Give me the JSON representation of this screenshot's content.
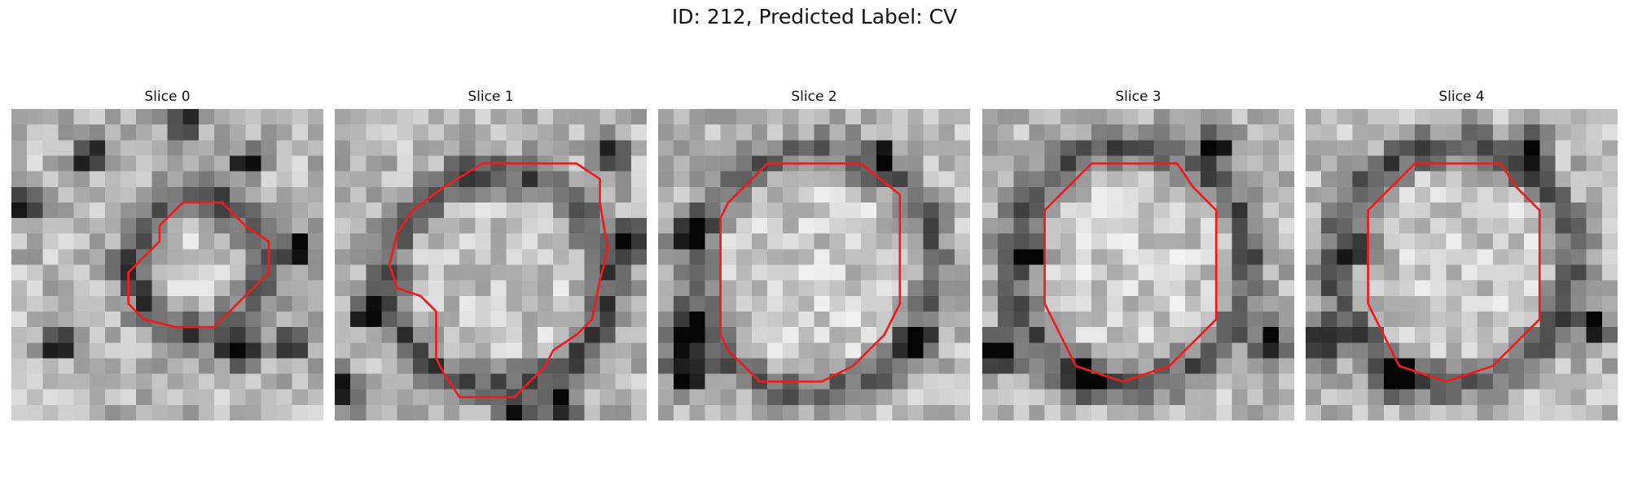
{
  "figure": {
    "title": "ID: 212, Predicted Label: CV"
  },
  "slices": [
    {
      "label": "Slice 0",
      "seed": 11,
      "contour": [
        [
          15.0,
          7.5
        ],
        [
          13.5,
          6.0
        ],
        [
          11.0,
          6.0
        ],
        [
          9.5,
          7.5
        ],
        [
          9.5,
          8.5
        ],
        [
          8.5,
          9.5
        ],
        [
          7.5,
          10.5
        ],
        [
          7.5,
          12.5
        ],
        [
          8.5,
          13.5
        ],
        [
          10.5,
          14.0
        ],
        [
          13.0,
          14.0
        ],
        [
          14.0,
          13.0
        ],
        [
          15.5,
          11.5
        ],
        [
          16.5,
          10.5
        ],
        [
          16.5,
          8.5
        ]
      ],
      "dark_blobs": [
        [
          0.8,
          6.0,
          0.9
        ],
        [
          18.5,
          9.0,
          1.0
        ],
        [
          14.5,
          15.5,
          1.2
        ],
        [
          11.0,
          1.0,
          1.1
        ],
        [
          15.0,
          3.5,
          0.9
        ],
        [
          18.0,
          15.0,
          1.0
        ],
        [
          5.0,
          3.0,
          1.0
        ],
        [
          3.0,
          15.0,
          1.0
        ]
      ],
      "ring": [
        12.0,
        10.0,
        4.3,
        0.42
      ],
      "bright": [
        12.0,
        10.0,
        2.7,
        0.05
      ]
    },
    {
      "label": "Slice 1",
      "seed": 23,
      "contour": [
        [
          17.0,
          4.5
        ],
        [
          15.5,
          3.5
        ],
        [
          9.5,
          3.5
        ],
        [
          7.0,
          5.0
        ],
        [
          5.0,
          6.5
        ],
        [
          4.0,
          8.0
        ],
        [
          3.5,
          10.0
        ],
        [
          4.0,
          11.5
        ],
        [
          5.5,
          12.0
        ],
        [
          6.5,
          13.0
        ],
        [
          6.5,
          16.0
        ],
        [
          7.0,
          17.0
        ],
        [
          8.0,
          18.5
        ],
        [
          11.5,
          18.5
        ],
        [
          12.5,
          17.5
        ],
        [
          13.5,
          16.5
        ],
        [
          14.0,
          15.5
        ],
        [
          15.5,
          14.5
        ],
        [
          16.5,
          13.5
        ],
        [
          17.0,
          11.0
        ],
        [
          17.5,
          9.0
        ],
        [
          17.0,
          6.0
        ]
      ],
      "dark_blobs": [
        [
          17.5,
          3.0,
          1.0
        ],
        [
          14.5,
          19.0,
          1.0
        ],
        [
          19.0,
          8.5,
          1.0
        ],
        [
          2.0,
          13.0,
          1.0
        ],
        [
          0.5,
          18.0,
          1.2
        ],
        [
          12.0,
          20.0,
          1.0
        ]
      ],
      "ring": [
        10.5,
        11.0,
        7.0,
        0.4
      ],
      "bright": [
        10.5,
        11.0,
        5.5,
        0.05
      ]
    },
    {
      "label": "Slice 2",
      "seed": 37,
      "contour": [
        [
          15.5,
          5.5
        ],
        [
          13.0,
          3.5
        ],
        [
          7.0,
          3.5
        ],
        [
          5.5,
          5.0
        ],
        [
          4.5,
          6.0
        ],
        [
          4.0,
          7.0
        ],
        [
          4.0,
          14.5
        ],
        [
          4.5,
          15.5
        ],
        [
          5.5,
          16.5
        ],
        [
          6.5,
          17.5
        ],
        [
          10.5,
          17.5
        ],
        [
          11.5,
          17.0
        ],
        [
          12.5,
          16.5
        ],
        [
          14.5,
          14.5
        ],
        [
          15.0,
          13.5
        ],
        [
          15.5,
          12.5
        ]
      ],
      "dark_blobs": [
        [
          1.5,
          14.5,
          1.3
        ],
        [
          1.8,
          17.0,
          1.2
        ],
        [
          2.0,
          8.0,
          1.0
        ],
        [
          14.5,
          3.0,
          0.8
        ],
        [
          16.5,
          15.0,
          0.9
        ]
      ],
      "ring": [
        10.0,
        10.5,
        7.8,
        0.35
      ],
      "bright": [
        10.0,
        10.5,
        6.0,
        0.07
      ]
    },
    {
      "label": "Slice 3",
      "seed": 53,
      "contour": [
        [
          13.5,
          5.0
        ],
        [
          12.5,
          3.5
        ],
        [
          7.0,
          3.5
        ],
        [
          6.0,
          4.5
        ],
        [
          4.0,
          6.5
        ],
        [
          4.0,
          12.5
        ],
        [
          4.5,
          13.5
        ],
        [
          5.0,
          14.5
        ],
        [
          6.0,
          16.5
        ],
        [
          9.0,
          17.5
        ],
        [
          10.5,
          17.0
        ],
        [
          12.0,
          16.5
        ],
        [
          13.0,
          15.5
        ],
        [
          15.0,
          13.5
        ],
        [
          15.0,
          6.5
        ]
      ],
      "dark_blobs": [
        [
          6.5,
          17.5,
          1.2
        ],
        [
          1.0,
          15.5,
          1.3
        ],
        [
          15.0,
          2.5,
          1.0
        ],
        [
          18.5,
          15.0,
          1.0
        ],
        [
          3.0,
          9.5,
          1.0
        ]
      ],
      "ring": [
        9.5,
        10.0,
        7.6,
        0.38
      ],
      "bright": [
        9.5,
        10.0,
        6.2,
        0.07
      ]
    },
    {
      "label": "Slice 4",
      "seed": 71,
      "contour": [
        [
          13.5,
          5.0
        ],
        [
          12.5,
          3.5
        ],
        [
          7.0,
          3.5
        ],
        [
          6.0,
          4.5
        ],
        [
          4.0,
          6.5
        ],
        [
          4.0,
          12.5
        ],
        [
          4.5,
          13.5
        ],
        [
          5.0,
          14.5
        ],
        [
          6.0,
          16.5
        ],
        [
          9.0,
          17.5
        ],
        [
          10.5,
          17.0
        ],
        [
          12.0,
          16.5
        ],
        [
          13.0,
          15.5
        ],
        [
          15.0,
          13.5
        ],
        [
          15.0,
          6.5
        ]
      ],
      "dark_blobs": [
        [
          6.0,
          17.5,
          1.2
        ],
        [
          1.0,
          15.0,
          1.3
        ],
        [
          14.5,
          2.5,
          1.0
        ],
        [
          18.5,
          14.0,
          1.0
        ],
        [
          3.5,
          9.0,
          1.0
        ]
      ],
      "ring": [
        9.5,
        10.0,
        7.6,
        0.38
      ],
      "bright": [
        9.5,
        10.0,
        6.2,
        0.07
      ]
    }
  ],
  "colors": {
    "contour": "#ee1c1c"
  }
}
